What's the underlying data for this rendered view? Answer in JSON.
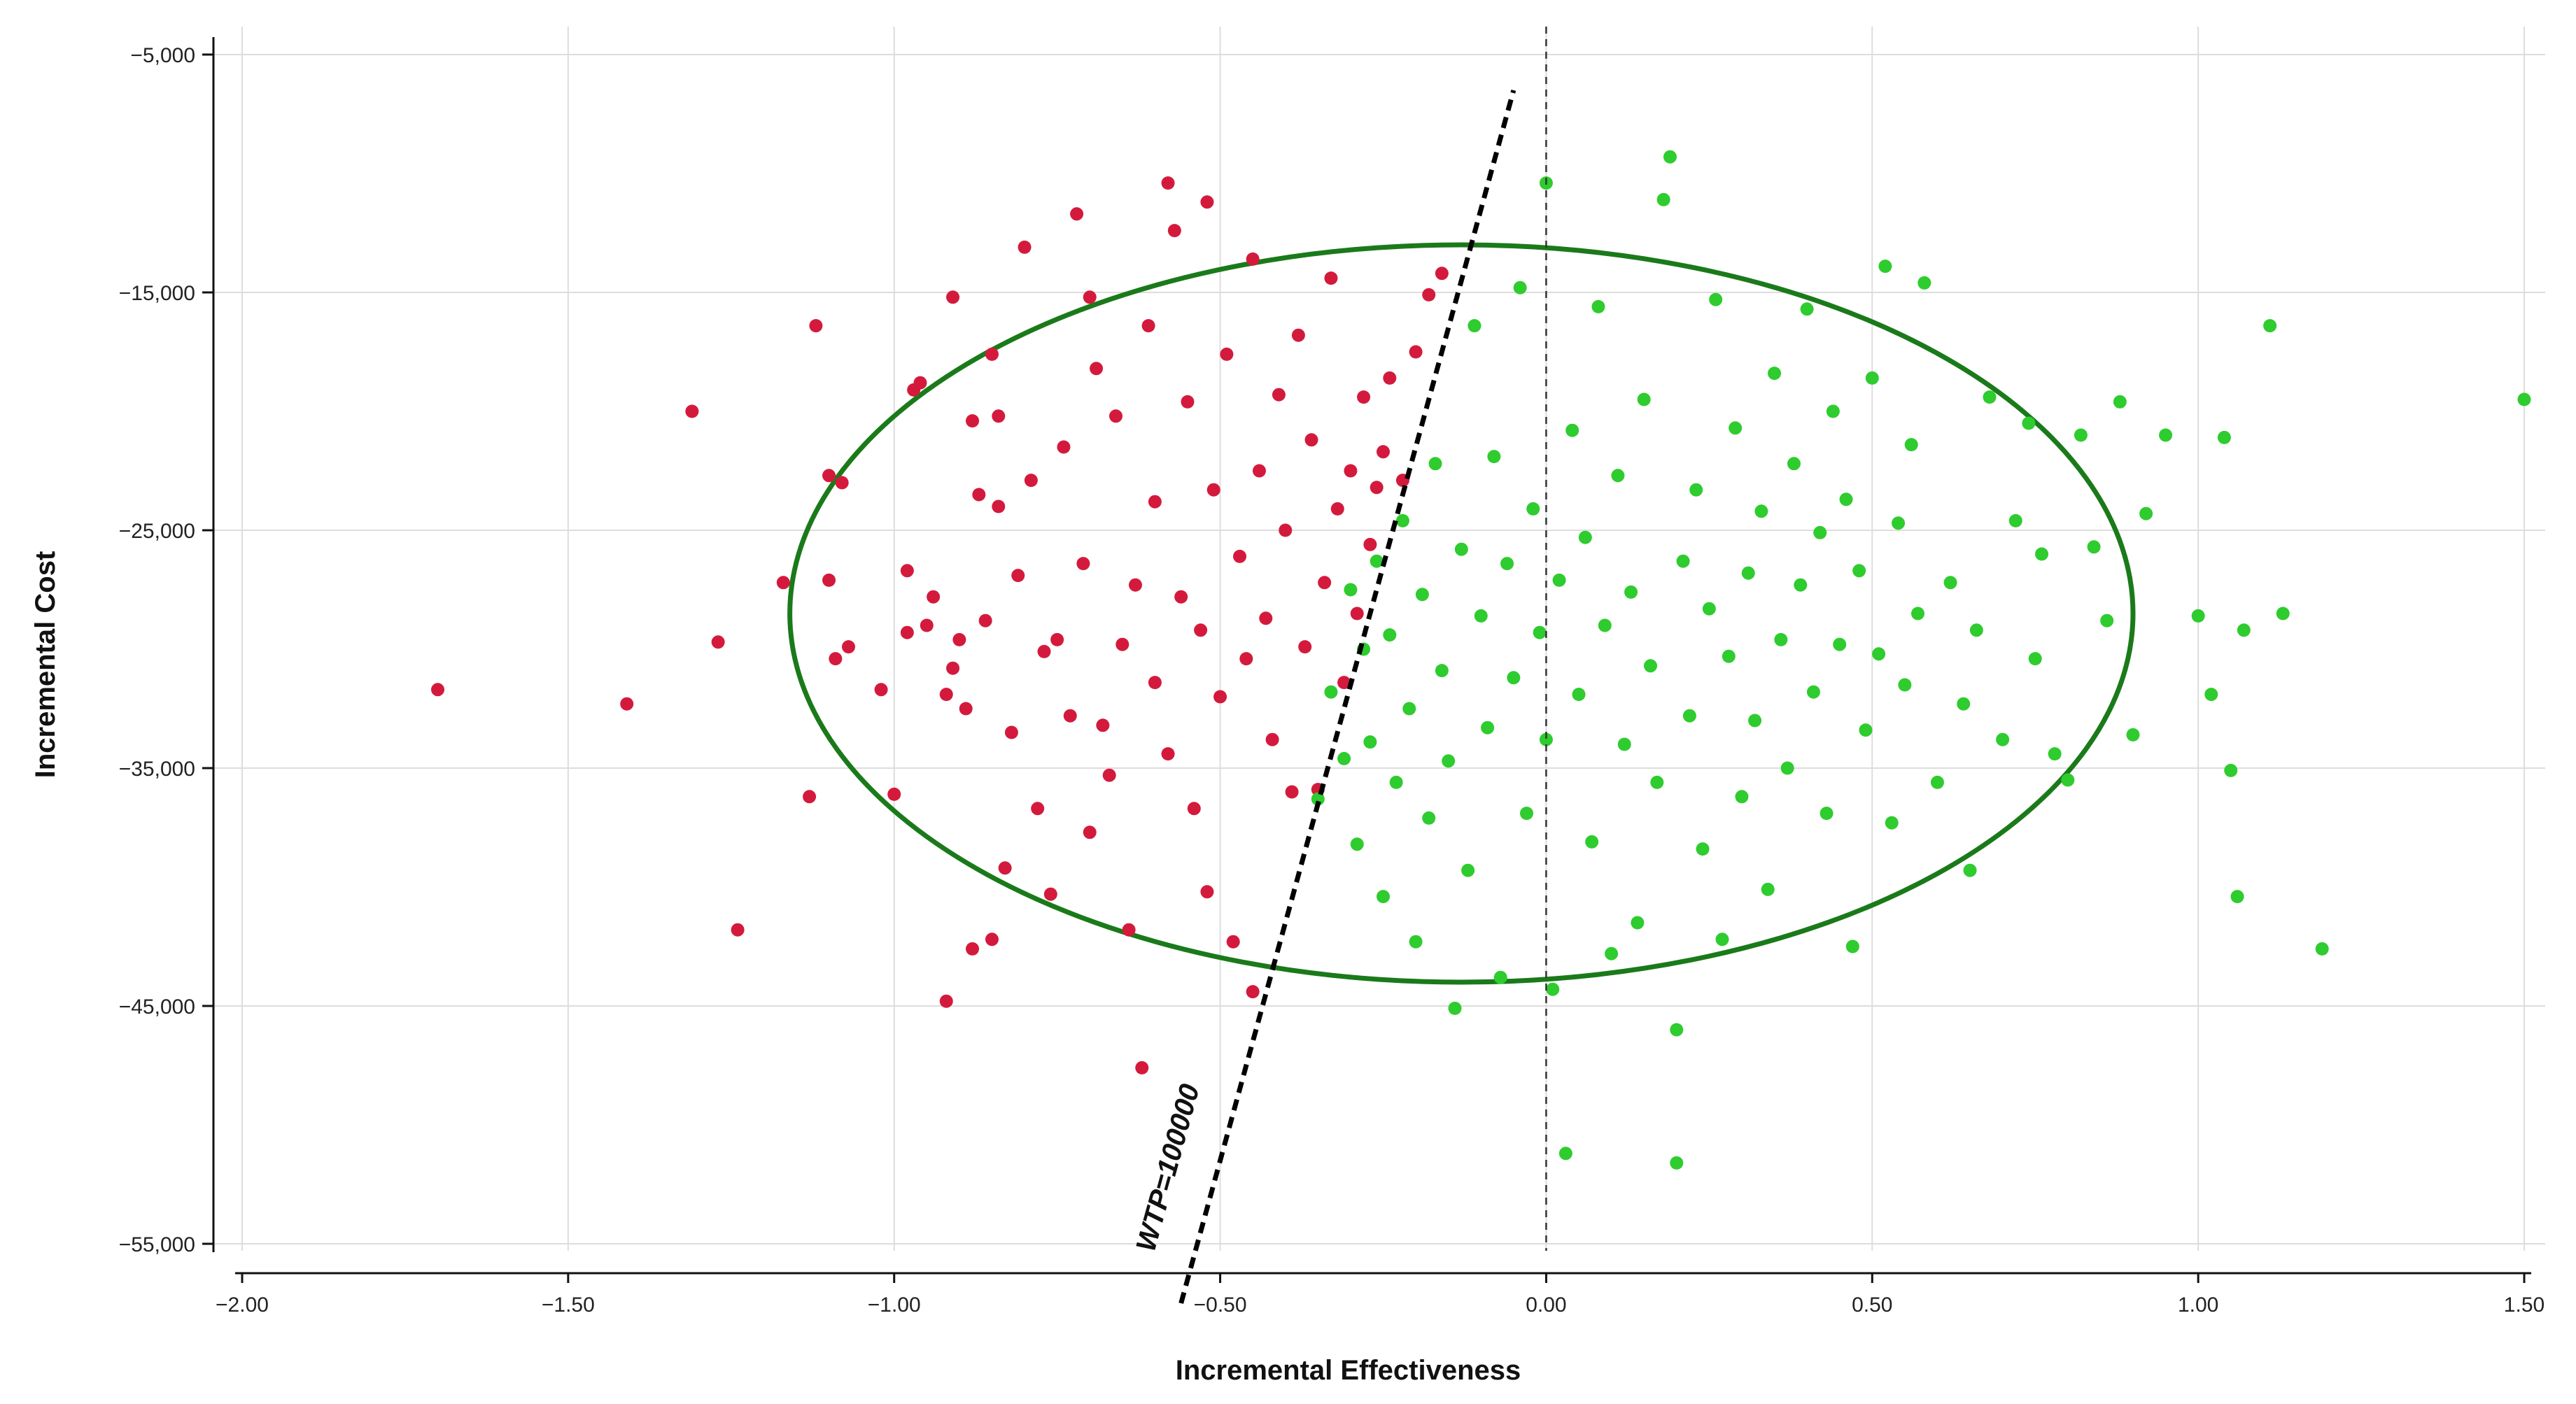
{
  "chart_data": {
    "type": "scatter",
    "xlabel": "Incremental Effectiveness",
    "ylabel": "Incremental Cost",
    "xlim": [
      -2.0,
      1.5
    ],
    "ylim": [
      -55000,
      -5000
    ],
    "x_ticks": [
      -2.0,
      -1.5,
      -1.0,
      -0.5,
      0.0,
      0.5,
      1.0,
      1.5
    ],
    "x_tick_labels": [
      "−2.00",
      "−1.50",
      "−1.00",
      "−0.50",
      "0.00",
      "0.50",
      "1.00",
      "1.50"
    ],
    "y_ticks": [
      -5000,
      -15000,
      -25000,
      -35000,
      -45000,
      -55000
    ],
    "y_tick_labels": [
      "−5,000",
      "−15,000",
      "−25,000",
      "−35,000",
      "−45,000",
      "−55,000"
    ],
    "grid": true,
    "wtp": {
      "label": "WTP=100000",
      "slope": 100000,
      "x_range": [
        -0.56,
        -0.05
      ]
    },
    "ellipse": {
      "cx": -0.13,
      "cy": -28500,
      "rx": 1.03,
      "ry": 15500,
      "color": "#1a7a1a"
    },
    "vertical_reference_x": 0.0,
    "colors": {
      "below_wtp": "#d41a3c",
      "above_wtp": "#2ecc2e",
      "wtp_line": "#000000",
      "grid": "#dddddd"
    },
    "series": [
      {
        "color": "#d41a3c",
        "points": [
          [
            -1.7,
            -31700
          ],
          [
            -1.41,
            -32300
          ],
          [
            -1.31,
            -20000
          ],
          [
            -1.27,
            -29700
          ],
          [
            -1.24,
            -41800
          ],
          [
            -1.17,
            -27200
          ],
          [
            -1.13,
            -36200
          ],
          [
            -1.12,
            -16400
          ],
          [
            -1.1,
            -27100
          ],
          [
            -1.1,
            -22700
          ],
          [
            -1.09,
            -30400
          ],
          [
            -1.08,
            -23000
          ],
          [
            -1.07,
            -29900
          ],
          [
            -1.02,
            -31700
          ],
          [
            -1.0,
            -36100
          ],
          [
            -0.98,
            -29300
          ],
          [
            -0.98,
            -26700
          ],
          [
            -0.97,
            -19100
          ],
          [
            -0.96,
            -18800
          ],
          [
            -0.95,
            -29000
          ],
          [
            -0.94,
            -27800
          ],
          [
            -0.92,
            -31900
          ],
          [
            -0.92,
            -44800
          ],
          [
            -0.91,
            -15200
          ],
          [
            -0.91,
            -30800
          ],
          [
            -0.9,
            -29600
          ],
          [
            -0.89,
            -32500
          ],
          [
            -0.88,
            -20400
          ],
          [
            -0.88,
            -42600
          ],
          [
            -0.87,
            -23500
          ],
          [
            -0.86,
            -28800
          ],
          [
            -0.85,
            -17600
          ],
          [
            -0.85,
            -42200
          ],
          [
            -0.84,
            -20200
          ],
          [
            -0.84,
            -24000
          ],
          [
            -0.83,
            -39200
          ],
          [
            -0.82,
            -33500
          ],
          [
            -0.81,
            -26900
          ],
          [
            -0.8,
            -13100
          ],
          [
            -0.79,
            -22900
          ],
          [
            -0.78,
            -36700
          ],
          [
            -0.77,
            -30100
          ],
          [
            -0.76,
            -40300
          ],
          [
            -0.75,
            -29600
          ],
          [
            -0.74,
            -21500
          ],
          [
            -0.73,
            -32800
          ],
          [
            -0.72,
            -11700
          ],
          [
            -0.71,
            -26400
          ],
          [
            -0.7,
            -15200
          ],
          [
            -0.7,
            -37700
          ],
          [
            -0.69,
            -18200
          ],
          [
            -0.68,
            -33200
          ],
          [
            -0.67,
            -35300
          ],
          [
            -0.66,
            -20200
          ],
          [
            -0.65,
            -29800
          ],
          [
            -0.64,
            -41800
          ],
          [
            -0.63,
            -27300
          ],
          [
            -0.62,
            -47600
          ],
          [
            -0.61,
            -16400
          ],
          [
            -0.6,
            -31400
          ],
          [
            -0.6,
            -23800
          ],
          [
            -0.58,
            -10400
          ],
          [
            -0.58,
            -34400
          ],
          [
            -0.57,
            -12400
          ],
          [
            -0.56,
            -27800
          ],
          [
            -0.55,
            -19600
          ],
          [
            -0.54,
            -36700
          ],
          [
            -0.53,
            -29200
          ],
          [
            -0.52,
            -11200
          ],
          [
            -0.52,
            -40200
          ],
          [
            -0.51,
            -23300
          ],
          [
            -0.5,
            -32000
          ],
          [
            -0.49,
            -17600
          ],
          [
            -0.48,
            -42300
          ],
          [
            -0.47,
            -26100
          ],
          [
            -0.46,
            -30400
          ],
          [
            -0.45,
            -13600
          ],
          [
            -0.45,
            -44400
          ],
          [
            -0.44,
            -22500
          ],
          [
            -0.43,
            -28700
          ],
          [
            -0.42,
            -33800
          ],
          [
            -0.41,
            -19300
          ],
          [
            -0.4,
            -25000
          ],
          [
            -0.39,
            -36000
          ],
          [
            -0.38,
            -16800
          ],
          [
            -0.37,
            -29900
          ],
          [
            -0.36,
            -21200
          ],
          [
            -0.35,
            -35900
          ],
          [
            -0.34,
            -27200
          ],
          [
            -0.33,
            -14400
          ],
          [
            -0.32,
            -24100
          ],
          [
            -0.31,
            -31400
          ],
          [
            -0.3,
            -22500
          ],
          [
            -0.29,
            -28500
          ],
          [
            -0.28,
            -19400
          ],
          [
            -0.27,
            -25600
          ],
          [
            -0.26,
            -23200
          ],
          [
            -0.25,
            -21700
          ],
          [
            -0.24,
            -18600
          ],
          [
            -0.22,
            -22900
          ],
          [
            -0.2,
            -17500
          ],
          [
            -0.18,
            -15100
          ],
          [
            -0.16,
            -14200
          ]
        ]
      },
      {
        "color": "#2ecc2e",
        "points": [
          [
            -0.35,
            -36300
          ],
          [
            -0.33,
            -31800
          ],
          [
            -0.31,
            -34600
          ],
          [
            -0.3,
            -27500
          ],
          [
            -0.29,
            -38200
          ],
          [
            -0.28,
            -30000
          ],
          [
            -0.27,
            -33900
          ],
          [
            -0.26,
            -26300
          ],
          [
            -0.25,
            -40400
          ],
          [
            -0.24,
            -29400
          ],
          [
            -0.23,
            -35600
          ],
          [
            -0.22,
            -24600
          ],
          [
            -0.21,
            -32500
          ],
          [
            -0.2,
            -42300
          ],
          [
            -0.19,
            -27700
          ],
          [
            -0.18,
            -37100
          ],
          [
            -0.17,
            -22200
          ],
          [
            -0.16,
            -30900
          ],
          [
            -0.15,
            -34700
          ],
          [
            -0.14,
            -45100
          ],
          [
            -0.13,
            -25800
          ],
          [
            -0.12,
            -39300
          ],
          [
            -0.11,
            -16400
          ],
          [
            -0.1,
            -28600
          ],
          [
            -0.09,
            -33300
          ],
          [
            -0.08,
            -21900
          ],
          [
            -0.07,
            -43800
          ],
          [
            -0.06,
            -26400
          ],
          [
            -0.05,
            -31200
          ],
          [
            -0.04,
            -14800
          ],
          [
            -0.03,
            -36900
          ],
          [
            -0.02,
            -24100
          ],
          [
            -0.01,
            -29300
          ],
          [
            0.0,
            -10400
          ],
          [
            0.0,
            -33800
          ],
          [
            0.01,
            -44300
          ],
          [
            0.02,
            -27100
          ],
          [
            0.03,
            -51200
          ],
          [
            0.04,
            -20800
          ],
          [
            0.05,
            -31900
          ],
          [
            0.06,
            -25300
          ],
          [
            0.07,
            -38100
          ],
          [
            0.08,
            -15600
          ],
          [
            0.09,
            -29000
          ],
          [
            0.1,
            -42800
          ],
          [
            0.11,
            -22700
          ],
          [
            0.12,
            -34000
          ],
          [
            0.13,
            -27600
          ],
          [
            0.14,
            -41500
          ],
          [
            0.15,
            -19500
          ],
          [
            0.16,
            -30700
          ],
          [
            0.17,
            -35600
          ],
          [
            0.18,
            -11100
          ],
          [
            0.19,
            -9300
          ],
          [
            0.2,
            -46000
          ],
          [
            0.2,
            -51600
          ],
          [
            0.21,
            -26300
          ],
          [
            0.22,
            -32800
          ],
          [
            0.23,
            -23300
          ],
          [
            0.24,
            -38400
          ],
          [
            0.25,
            -28300
          ],
          [
            0.26,
            -15300
          ],
          [
            0.27,
            -42200
          ],
          [
            0.28,
            -30300
          ],
          [
            0.29,
            -20700
          ],
          [
            0.3,
            -36200
          ],
          [
            0.31,
            -26800
          ],
          [
            0.32,
            -33000
          ],
          [
            0.33,
            -24200
          ],
          [
            0.34,
            -40100
          ],
          [
            0.35,
            -18400
          ],
          [
            0.36,
            -29600
          ],
          [
            0.37,
            -35000
          ],
          [
            0.38,
            -22200
          ],
          [
            0.39,
            -27300
          ],
          [
            0.4,
            -15700
          ],
          [
            0.41,
            -31800
          ],
          [
            0.42,
            -25100
          ],
          [
            0.43,
            -36900
          ],
          [
            0.44,
            -20000
          ],
          [
            0.45,
            -29800
          ],
          [
            0.46,
            -23700
          ],
          [
            0.47,
            -42500
          ],
          [
            0.48,
            -26700
          ],
          [
            0.49,
            -33400
          ],
          [
            0.5,
            -18600
          ],
          [
            0.51,
            -30200
          ],
          [
            0.52,
            -13900
          ],
          [
            0.53,
            -37300
          ],
          [
            0.54,
            -24700
          ],
          [
            0.55,
            -31500
          ],
          [
            0.56,
            -21400
          ],
          [
            0.57,
            -28500
          ],
          [
            0.58,
            -14600
          ],
          [
            0.6,
            -35600
          ],
          [
            0.62,
            -27200
          ],
          [
            0.64,
            -32300
          ],
          [
            0.65,
            -39300
          ],
          [
            0.66,
            -29200
          ],
          [
            0.68,
            -19400
          ],
          [
            0.7,
            -33800
          ],
          [
            0.72,
            -24600
          ],
          [
            0.74,
            -20500
          ],
          [
            0.75,
            -30400
          ],
          [
            0.76,
            -26000
          ],
          [
            0.78,
            -34400
          ],
          [
            0.8,
            -35500
          ],
          [
            0.82,
            -21000
          ],
          [
            0.84,
            -25700
          ],
          [
            0.86,
            -28800
          ],
          [
            0.88,
            -19600
          ],
          [
            0.9,
            -33600
          ],
          [
            0.92,
            -24300
          ],
          [
            0.95,
            -21000
          ],
          [
            1.0,
            -28600
          ],
          [
            1.02,
            -31900
          ],
          [
            1.04,
            -21100
          ],
          [
            1.05,
            -35100
          ],
          [
            1.06,
            -40400
          ],
          [
            1.07,
            -29200
          ],
          [
            1.11,
            -16400
          ],
          [
            1.13,
            -28500
          ],
          [
            1.19,
            -42600
          ],
          [
            1.5,
            -19500
          ]
        ]
      }
    ]
  }
}
